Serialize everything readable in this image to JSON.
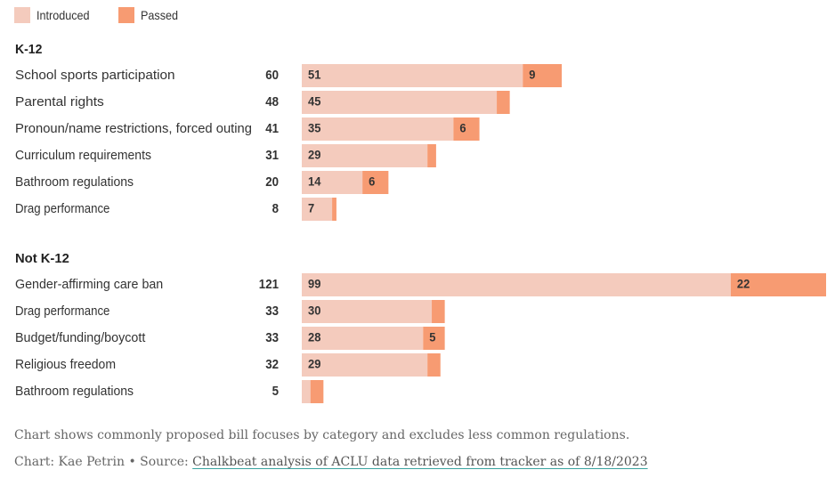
{
  "colors": {
    "introduced": "#f4cbbd",
    "passed": "#f79b72"
  },
  "legend": [
    {
      "key": "introduced",
      "label": "Introduced"
    },
    {
      "key": "passed",
      "label": "Passed"
    }
  ],
  "chart_data": {
    "type": "bar",
    "orientation": "horizontal",
    "stacked": true,
    "series_names": [
      "Introduced",
      "Passed"
    ],
    "groups": [
      {
        "name": "K-12",
        "rows": [
          {
            "label": "School sports participation",
            "total": 60,
            "introduced": 51,
            "passed": 9
          },
          {
            "label": "Parental rights",
            "total": 48,
            "introduced": 45,
            "passed": 3
          },
          {
            "label": "Pronoun/name restrictions, forced outing",
            "total": 41,
            "introduced": 35,
            "passed": 6
          },
          {
            "label": "Curriculum requirements",
            "total": 31,
            "introduced": 29,
            "passed": 2
          },
          {
            "label": "Bathroom regulations",
            "total": 20,
            "introduced": 14,
            "passed": 6
          },
          {
            "label": "Drag performance",
            "total": 8,
            "introduced": 7,
            "passed": 1
          }
        ]
      },
      {
        "name": "Not K-12",
        "rows": [
          {
            "label": "Gender-affirming care ban",
            "total": 121,
            "introduced": 99,
            "passed": 22
          },
          {
            "label": "Drag performance",
            "total": 33,
            "introduced": 30,
            "passed": 3
          },
          {
            "label": "Budget/funding/boycott",
            "total": 33,
            "introduced": 28,
            "passed": 5
          },
          {
            "label": "Religious freedom",
            "total": 32,
            "introduced": 29,
            "passed": 3
          },
          {
            "label": "Bathroom regulations",
            "total": 5,
            "introduced": 2,
            "passed": 3
          }
        ]
      }
    ],
    "label_min": {
      "introduced": 5,
      "passed": 5
    }
  },
  "notes": {
    "description": "Chart shows commonly proposed bill focuses by category and excludes less common regulations.",
    "credit": "Chart: Kae Petrin • Source: ",
    "source_link": "Chalkbeat analysis of ACLU data retrieved from tracker as of 8/18/2023"
  }
}
